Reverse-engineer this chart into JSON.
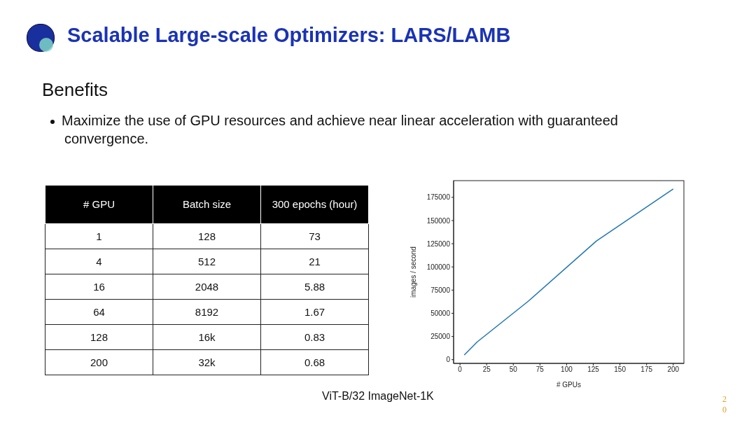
{
  "chart_data": [
    {
      "type": "other",
      "title": "Scalable Large-scale Optimizers: LARS/LAMB",
      "subtitle": "Benefits",
      "categories": [
        "# GPU",
        "Batch size",
        "300 epochs (hour)"
      ],
      "cell_labels": [
        [
          "1",
          "128",
          "73"
        ],
        [
          "4",
          "512",
          "21"
        ],
        [
          "16",
          "2048",
          "5.88"
        ],
        [
          "64",
          "8192",
          "1.67"
        ],
        [
          "128",
          "16k",
          "0.83"
        ],
        [
          "200",
          "32k",
          "0.68"
        ]
      ],
      "annotations": [
        "Maximize the use of GPU resources and achieve near linear acceleration with guaranteed convergence.",
        "ViT-B/32 ImageNet-1K",
        "20"
      ]
    },
    {
      "type": "line",
      "x": [
        4,
        16,
        64,
        128,
        200
      ],
      "values": [
        5000,
        19000,
        63000,
        128000,
        184000
      ],
      "color": "#1f77b4",
      "xlabel": "# GPUs",
      "ylabel": "images / second",
      "xlim": [
        -6,
        210
      ],
      "xticks": [
        0,
        25,
        50,
        75,
        100,
        125,
        150,
        175,
        200
      ],
      "ylim": [
        -4000,
        193000
      ],
      "yticks": [
        0,
        25000,
        50000,
        75000,
        100000,
        125000,
        150000,
        175000
      ],
      "grid": false,
      "legend": false,
      "marker": "none",
      "line_style": "solid"
    }
  ]
}
